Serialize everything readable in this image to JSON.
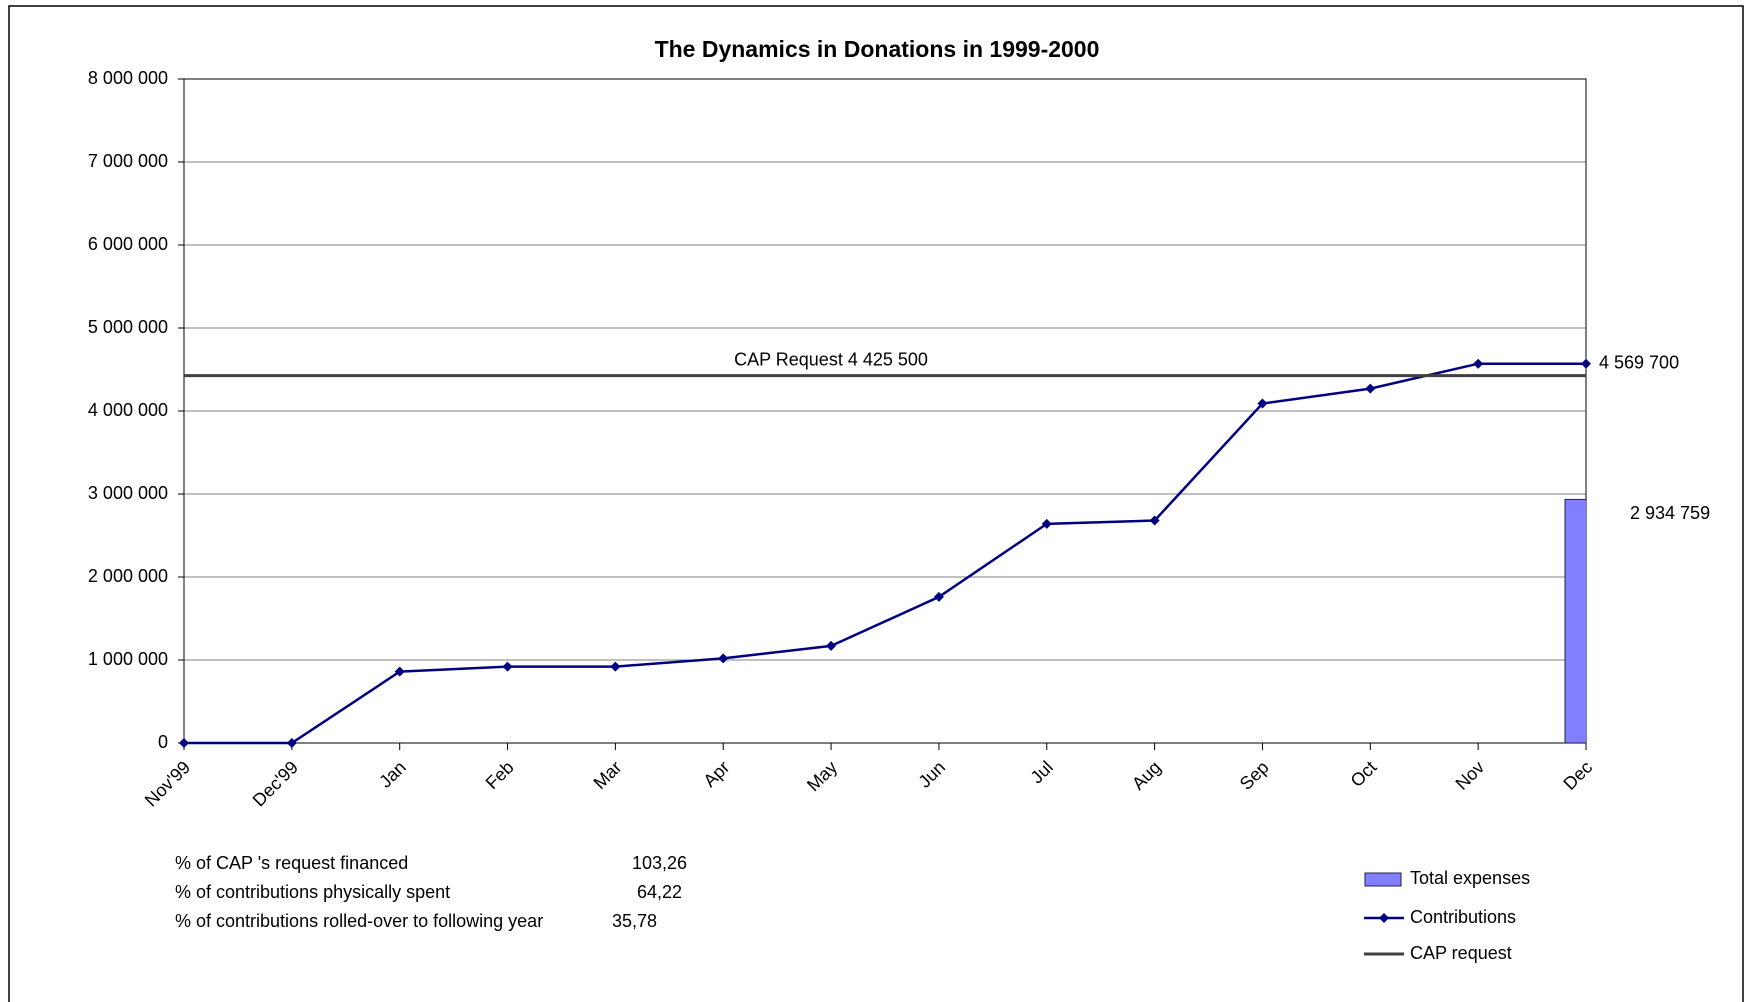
{
  "chart_data": {
    "type": "line",
    "title": "The Dynamics in Donations in 1999-2000",
    "categories": [
      "Nov'99",
      "Dec'99",
      "Jan",
      "Feb",
      "Mar",
      "Apr",
      "May",
      "Jun",
      "Jul",
      "Aug",
      "Sep",
      "Oct",
      "Nov",
      "Dec"
    ],
    "series": [
      {
        "name": "Total expenses",
        "type": "bar",
        "color": "#8080ff",
        "values": [
          null,
          null,
          null,
          null,
          null,
          null,
          null,
          null,
          null,
          null,
          null,
          null,
          null,
          2934759
        ],
        "value_labels": [
          null,
          null,
          null,
          null,
          null,
          null,
          null,
          null,
          null,
          null,
          null,
          null,
          null,
          "2 934 759"
        ]
      },
      {
        "name": "Contributions",
        "type": "line",
        "color": "#000080",
        "values": [
          0,
          0,
          860000,
          920000,
          920000,
          1020000,
          1170000,
          1760000,
          2640000,
          2680000,
          4090000,
          4270000,
          4569700,
          4569700
        ],
        "value_labels": [
          null,
          null,
          null,
          null,
          null,
          null,
          null,
          null,
          null,
          null,
          null,
          null,
          null,
          "4 569 700"
        ]
      },
      {
        "name": "CAP request",
        "type": "hline",
        "color": "#404040",
        "value": 4425500,
        "value_label": "CAP Request 4 425 500"
      }
    ],
    "ylim": [
      0,
      8000000
    ],
    "yticks": [
      {
        "value": 0,
        "label": "0"
      },
      {
        "value": 1000000,
        "label": "1 000 000"
      },
      {
        "value": 2000000,
        "label": "2 000 000"
      },
      {
        "value": 3000000,
        "label": "3 000 000"
      },
      {
        "value": 4000000,
        "label": "4 000 000"
      },
      {
        "value": 5000000,
        "label": "5 000 000"
      },
      {
        "value": 6000000,
        "label": "6 000 000"
      },
      {
        "value": 7000000,
        "label": "7 000 000"
      },
      {
        "value": 8000000,
        "label": "8 000 000"
      }
    ],
    "grid": true,
    "legend": "lower right",
    "notes": [
      {
        "label": "% of CAP 's request financed",
        "value": "103,26"
      },
      {
        "label": "% of contributions physically spent",
        "value": "64,22"
      },
      {
        "label": "% of contributions rolled-over to following year",
        "value": "35,78"
      }
    ]
  }
}
